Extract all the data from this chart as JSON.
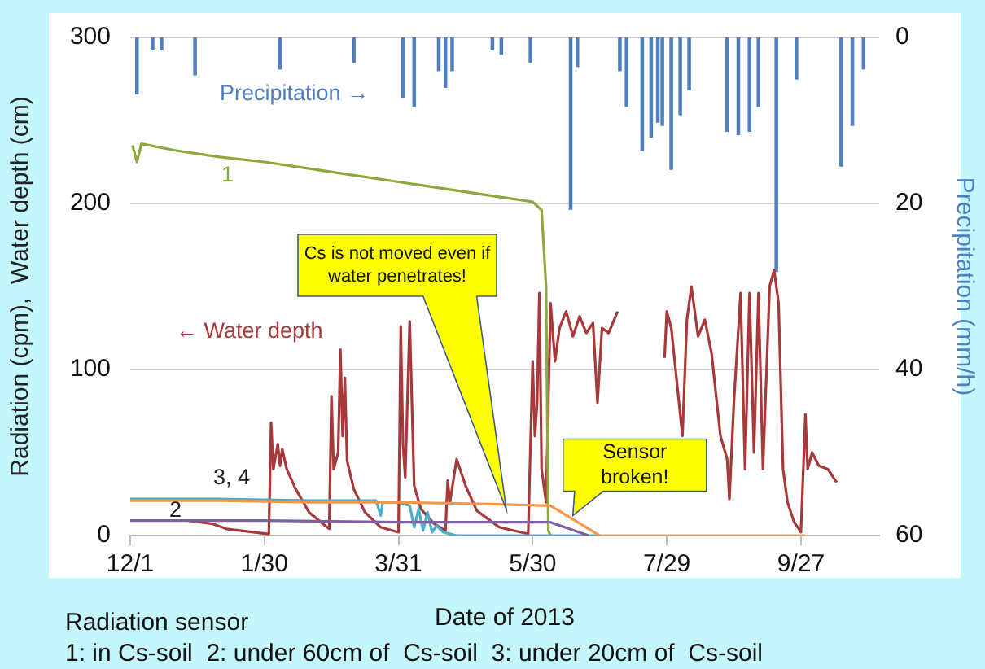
{
  "chart_data": {
    "type": "line",
    "xlabel": "Date of 2013",
    "ylabel": "Radiation (cpm),  Water depth (cm)",
    "y2label": "Precipitation (mm/h)",
    "xlim": [
      "2012-12-01",
      "2013-11-01"
    ],
    "xticks": [
      {
        "value": "2012-12-01",
        "label": "12/1"
      },
      {
        "value": "2013-01-30",
        "label": "1/30"
      },
      {
        "value": "2013-03-31",
        "label": "3/31"
      },
      {
        "value": "2013-05-30",
        "label": "5/30"
      },
      {
        "value": "2013-07-29",
        "label": "7/29"
      },
      {
        "value": "2013-09-27",
        "label": "9/27"
      }
    ],
    "ylim": [
      0,
      300
    ],
    "yticks": [
      0,
      100,
      200,
      300
    ],
    "y2lim": [
      60,
      0
    ],
    "y2ticks": [
      0,
      20,
      40,
      60
    ],
    "grid": "y",
    "legend": false,
    "marker": "none",
    "series": [
      {
        "name": "Precipitation →",
        "type": "bar",
        "axis": "y2",
        "color": "#4f7fbf",
        "x": [
          "2012-12-04",
          "2012-12-11",
          "2012-12-15",
          "2012-12-30",
          "2013-02-06",
          "2013-03-11",
          "2013-04-02",
          "2013-04-07",
          "2013-04-18",
          "2013-04-21",
          "2013-04-24",
          "2013-05-12",
          "2013-05-16",
          "2013-05-29",
          "2013-06-16",
          "2013-06-19",
          "2013-07-08",
          "2013-07-11",
          "2013-07-18",
          "2013-07-22",
          "2013-07-25",
          "2013-07-27",
          "2013-07-31",
          "2013-08-04",
          "2013-08-08",
          "2013-08-25",
          "2013-08-30",
          "2013-09-04",
          "2013-09-08",
          "2013-09-16",
          "2013-09-25",
          "2013-10-15",
          "2013-10-20",
          "2013-10-25"
        ],
        "values": [
          6.8,
          1.5,
          1.5,
          4.5,
          3.8,
          3,
          7.2,
          8.3,
          4,
          6,
          4,
          1.5,
          2,
          3,
          20.7,
          3.5,
          4,
          8.3,
          13.6,
          12,
          10.2,
          10.6,
          15.9,
          9.3,
          6.3,
          11.3,
          11.7,
          11.3,
          8.3,
          28.2,
          5,
          15.5,
          10.6,
          3.8
        ]
      },
      {
        "name": "← Water depth",
        "color": "#a8393a",
        "x": [
          "2012-12-27",
          "2013-01-07",
          "2013-01-13",
          "2013-01-31",
          "2013-02-01",
          "2013-02-02",
          "2013-02-03",
          "2013-02-05",
          "2013-02-06",
          "2013-02-07",
          "2013-02-09",
          "2013-02-13",
          "2013-02-19",
          "2013-02-27",
          "2013-02-28",
          "2013-03-01",
          "2013-03-02",
          "2013-03-04",
          "2013-03-05",
          "2013-03-06",
          "2013-03-07",
          "2013-03-08",
          "2013-03-11",
          "2013-03-16",
          "2013-03-23",
          "2013-03-31",
          "2013-04-01",
          "2013-04-02",
          "2013-04-03",
          "2013-04-05",
          "2013-04-07",
          "2013-04-10",
          "2013-04-16",
          "2013-04-21",
          "2013-04-22",
          "2013-04-23",
          "2013-04-26",
          "2013-04-30",
          "2013-05-05",
          "2013-05-15",
          "2013-05-28",
          "2013-05-30",
          "2013-05-31",
          "2013-06-01",
          "2013-06-02",
          "2013-06-03",
          "2013-06-05",
          "2013-06-07",
          "2013-06-09",
          "2013-06-11",
          "2013-06-14",
          "2013-06-17",
          "2013-06-20",
          "2013-06-23",
          "2013-06-26",
          "2013-06-28",
          "2013-06-30",
          "2013-07-03",
          "2013-07-07",
          "2013-07-17",
          "2013-07-28",
          "2013-07-29",
          "2013-07-31",
          "2013-08-05",
          "2013-08-07",
          "2013-08-09",
          "2013-08-12",
          "2013-08-15",
          "2013-08-18",
          "2013-08-22",
          "2013-08-25",
          "2013-08-26",
          "2013-08-28",
          "2013-08-31",
          "2013-09-02",
          "2013-09-04",
          "2013-09-06",
          "2013-09-08",
          "2013-09-10",
          "2013-09-13",
          "2013-09-15",
          "2013-09-17",
          "2013-09-19",
          "2013-09-21",
          "2013-09-24",
          "2013-09-27",
          "2013-09-29",
          "2013-09-30",
          "2013-10-02",
          "2013-10-05",
          "2013-10-09",
          "2013-10-13"
        ],
        "values": [
          9,
          7,
          4,
          1,
          1,
          68,
          40,
          55,
          42,
          52,
          40,
          28,
          14,
          5,
          4,
          84,
          40,
          50,
          112,
          60,
          95,
          45,
          28,
          14,
          5,
          2,
          126,
          55,
          35,
          129,
          30,
          16,
          7,
          3,
          33,
          20,
          46,
          30,
          15,
          5,
          1,
          105,
          60,
          80,
          146,
          40,
          20,
          140,
          105,
          125,
          135,
          120,
          132,
          122,
          128,
          80,
          125,
          122,
          135,
          null,
          107,
          135,
          125,
          60,
          130,
          150,
          120,
          130,
          110,
          60,
          46,
          22,
          80,
          146,
          40,
          146,
          50,
          146,
          40,
          150,
          160,
          140,
          40,
          20,
          8,
          2,
          73,
          40,
          50,
          42,
          40,
          32
        ]
      },
      {
        "name": "1",
        "color": "#8aaa3c",
        "x": [
          "2012-12-02",
          "2012-12-04",
          "2012-12-06",
          "2012-12-21",
          "2013-01-10",
          "2013-01-30",
          "2013-02-19",
          "2013-03-11",
          "2013-03-31",
          "2013-04-20",
          "2013-05-10",
          "2013-05-20",
          "2013-05-30",
          "2013-06-03",
          "2013-06-05",
          "2013-06-06",
          "2013-06-07"
        ],
        "values": [
          235,
          225,
          236,
          232,
          228,
          225,
          221,
          217,
          213,
          209,
          205,
          203,
          201,
          196,
          150,
          3,
          0
        ]
      },
      {
        "color": "#4bacc6",
        "x": [
          "2012-12-01",
          "2013-01-10",
          "2013-02-19",
          "2013-03-21",
          "2013-03-23",
          "2013-03-24",
          "2013-03-31",
          "2013-04-05",
          "2013-04-07",
          "2013-04-09",
          "2013-04-11",
          "2013-04-13",
          "2013-04-15",
          "2013-04-17",
          "2013-04-20",
          "2013-04-26",
          "2013-06-29"
        ],
        "values": [
          22,
          22,
          21,
          21,
          12,
          20,
          20,
          18,
          5,
          16,
          3,
          14,
          2,
          6,
          2,
          0,
          0
        ]
      },
      {
        "name": "2",
        "color": "#7f5fa0",
        "x": [
          "2012-12-01",
          "2013-01-30",
          "2013-03-31",
          "2013-06-07",
          "2013-06-24"
        ],
        "values": [
          9,
          9,
          8,
          8,
          0
        ]
      },
      {
        "name": "3, 4",
        "color": "#f79646",
        "x": [
          "2012-12-01",
          "2013-01-10",
          "2013-02-19",
          "2013-03-31",
          "2013-05-10",
          "2013-06-07",
          "2013-06-29",
          "2013-09-29"
        ],
        "values": [
          21,
          21,
          20,
          20,
          19,
          18,
          0,
          0
        ]
      }
    ],
    "annotations": [
      "Cs is not moved even if water penetrates!",
      {
        "text": "Sensor broken!",
        "x": "2013-06-17",
        "y": 12
      },
      "Radiation sensor",
      "1: in Cs-soil  2: under 60cm of  Cs-soil  3: under 20cm of  Cs-soil"
    ]
  }
}
